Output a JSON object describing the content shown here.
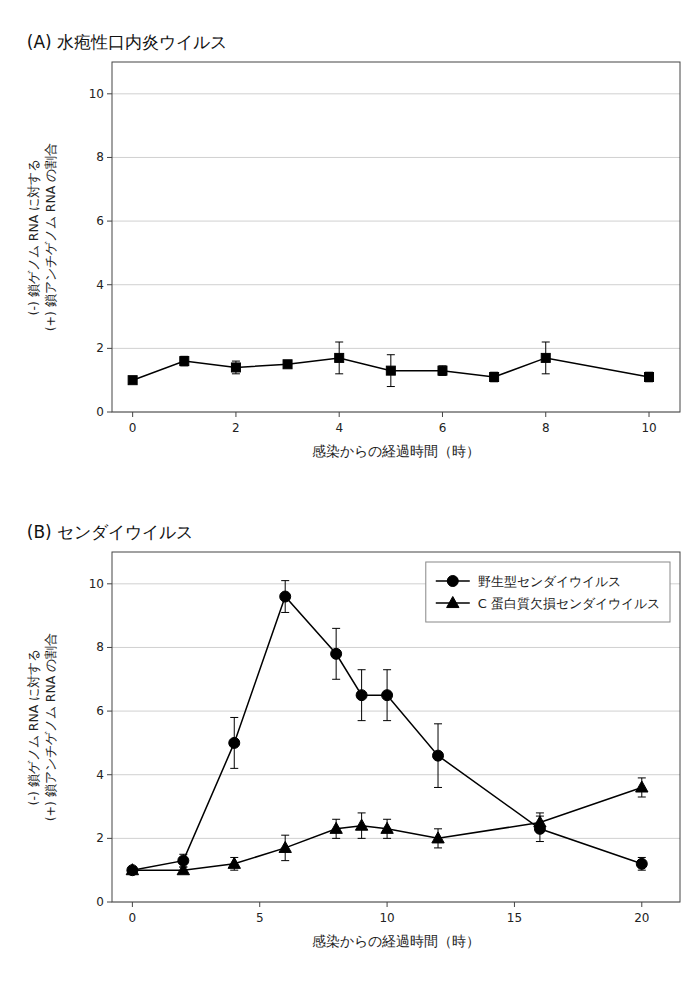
{
  "chart_data": [
    {
      "type": "line",
      "title": "(A) 水疱性口内炎ウイルス",
      "x_label": "感染からの経過時間（時）",
      "y_label": [
        "(-) 鎖ゲノム RNA に対する",
        "(+) 鎖アンチゲノム RNA の割合"
      ],
      "x": [
        0,
        1,
        2,
        3,
        4,
        5,
        6,
        7,
        8,
        10
      ],
      "xlim": [
        -0.4,
        10.6
      ],
      "ylim": [
        0,
        11
      ],
      "xticks": [
        0,
        2,
        4,
        6,
        8,
        10
      ],
      "yticks": [
        0,
        2,
        4,
        6,
        8,
        10
      ],
      "grid": true,
      "series": [
        {
          "color": "#000000",
          "marker": "square",
          "line_style": "solid",
          "values": [
            1.0,
            1.6,
            1.4,
            1.5,
            1.7,
            1.3,
            1.3,
            1.1,
            1.7,
            1.1
          ],
          "errors": [
            0.1,
            0.15,
            0.2,
            0.1,
            0.5,
            0.5,
            0.15,
            0.15,
            0.5,
            0.15
          ]
        }
      ]
    },
    {
      "type": "line",
      "title": "(B) センダイウイルス",
      "x_label": "感染からの経過時間（時）",
      "y_label": [
        "(-) 鎖ゲノム RNA に対する",
        "(+) 鎖アンチゲノム RNA の割合"
      ],
      "x": [
        0,
        2,
        4,
        6,
        8,
        9,
        10,
        12,
        16,
        20
      ],
      "xlim": [
        -0.8,
        21.5
      ],
      "ylim": [
        0,
        11
      ],
      "xticks": [
        0,
        5,
        10,
        15,
        20
      ],
      "yticks": [
        0,
        2,
        4,
        6,
        8,
        10
      ],
      "grid": true,
      "legend": "upper right",
      "series": [
        {
          "name": "野生型センダイウイルス",
          "color": "#000000",
          "marker": "circle",
          "line_style": "solid",
          "values": [
            1.0,
            1.3,
            5.0,
            9.6,
            7.8,
            6.5,
            6.5,
            4.6,
            2.3,
            1.2
          ],
          "errors": [
            0.1,
            0.2,
            0.8,
            0.5,
            0.8,
            0.8,
            0.8,
            1.0,
            0.4,
            0.2
          ]
        },
        {
          "name": "C 蛋白質欠損センダイウイルス",
          "color": "#000000",
          "marker": "triangle",
          "line_style": "solid",
          "values": [
            1.0,
            1.0,
            1.2,
            1.7,
            2.3,
            2.4,
            2.3,
            2.0,
            2.5,
            3.6
          ],
          "errors": [
            0.1,
            0.1,
            0.2,
            0.4,
            0.3,
            0.4,
            0.3,
            0.3,
            0.3,
            0.3
          ]
        }
      ]
    }
  ]
}
